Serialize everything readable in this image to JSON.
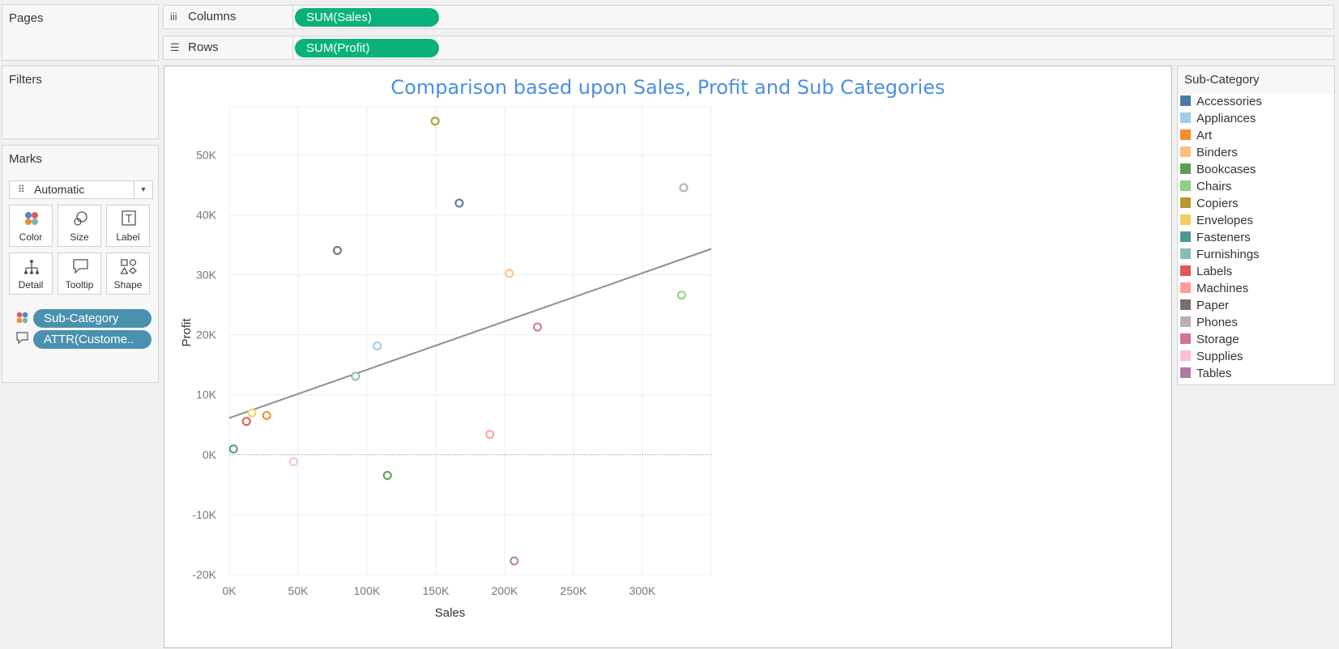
{
  "pages_title": "Pages",
  "filters_title": "Filters",
  "columns": {
    "label": "Columns",
    "pill": "SUM(Sales)"
  },
  "rows": {
    "label": "Rows",
    "pill": "SUM(Profit)"
  },
  "marks": {
    "title": "Marks",
    "mark_type": "Automatic",
    "buttons": [
      "Color",
      "Size",
      "Label",
      "Detail",
      "Tooltip",
      "Shape"
    ],
    "pills": [
      "Sub-Category",
      "ATTR(Custome.."
    ]
  },
  "legend": {
    "title": "Sub-Category",
    "items": [
      {
        "label": "Accessories",
        "color": "#4e79a7"
      },
      {
        "label": "Appliances",
        "color": "#a0cbe8"
      },
      {
        "label": "Art",
        "color": "#f28e2b"
      },
      {
        "label": "Binders",
        "color": "#ffbe7d"
      },
      {
        "label": "Bookcases",
        "color": "#59a14f"
      },
      {
        "label": "Chairs",
        "color": "#8cd17d"
      },
      {
        "label": "Copiers",
        "color": "#b6992d"
      },
      {
        "label": "Envelopes",
        "color": "#f1ce63"
      },
      {
        "label": "Fasteners",
        "color": "#499894"
      },
      {
        "label": "Furnishings",
        "color": "#86bcb6"
      },
      {
        "label": "Labels",
        "color": "#e15759"
      },
      {
        "label": "Machines",
        "color": "#ff9d9a"
      },
      {
        "label": "Paper",
        "color": "#79706e"
      },
      {
        "label": "Phones",
        "color": "#bab0ac"
      },
      {
        "label": "Storage",
        "color": "#d37295"
      },
      {
        "label": "Supplies",
        "color": "#fabfd2"
      },
      {
        "label": "Tables",
        "color": "#b07aa1"
      }
    ]
  },
  "chart_data": {
    "type": "scatter",
    "title": "Comparison based upon Sales, Profit and Sub Categories",
    "xlabel": "Sales",
    "ylabel": "Profit",
    "xlim": [
      0,
      350000
    ],
    "ylim": [
      -20000,
      58000
    ],
    "x_ticks": [
      0,
      50000,
      100000,
      150000,
      200000,
      250000,
      300000
    ],
    "x_tick_labels": [
      "0K",
      "50K",
      "100K",
      "150K",
      "200K",
      "250K",
      "300K"
    ],
    "y_ticks": [
      -20000,
      -10000,
      0,
      10000,
      20000,
      30000,
      40000,
      50000
    ],
    "y_tick_labels": [
      "-20K",
      "-10K",
      "0K",
      "10K",
      "20K",
      "30K",
      "40K",
      "50K"
    ],
    "grid": true,
    "zero_line": true,
    "marker": "hollow-circle",
    "trend_line": {
      "type": "linear",
      "points": [
        [
          0,
          6100
        ],
        [
          350000,
          34300
        ]
      ],
      "color": "#8f8f8f"
    },
    "points": [
      {
        "name": "Accessories",
        "x": 167026,
        "y": 41937
      },
      {
        "name": "Appliances",
        "x": 107532,
        "y": 18138
      },
      {
        "name": "Art",
        "x": 27119,
        "y": 6528
      },
      {
        "name": "Binders",
        "x": 203413,
        "y": 30222
      },
      {
        "name": "Bookcases",
        "x": 114880,
        "y": -3473
      },
      {
        "name": "Chairs",
        "x": 328449,
        "y": 26590
      },
      {
        "name": "Copiers",
        "x": 149528,
        "y": 55618
      },
      {
        "name": "Envelopes",
        "x": 16476,
        "y": 6964
      },
      {
        "name": "Fasteners",
        "x": 3024,
        "y": 950
      },
      {
        "name": "Furnishings",
        "x": 91705,
        "y": 13059
      },
      {
        "name": "Labels",
        "x": 12486,
        "y": 5546
      },
      {
        "name": "Machines",
        "x": 189239,
        "y": 3385
      },
      {
        "name": "Paper",
        "x": 78479,
        "y": 34054
      },
      {
        "name": "Phones",
        "x": 330007,
        "y": 44516
      },
      {
        "name": "Storage",
        "x": 223844,
        "y": 21279
      },
      {
        "name": "Supplies",
        "x": 46674,
        "y": -1189
      },
      {
        "name": "Tables",
        "x": 206966,
        "y": -17725
      }
    ]
  }
}
